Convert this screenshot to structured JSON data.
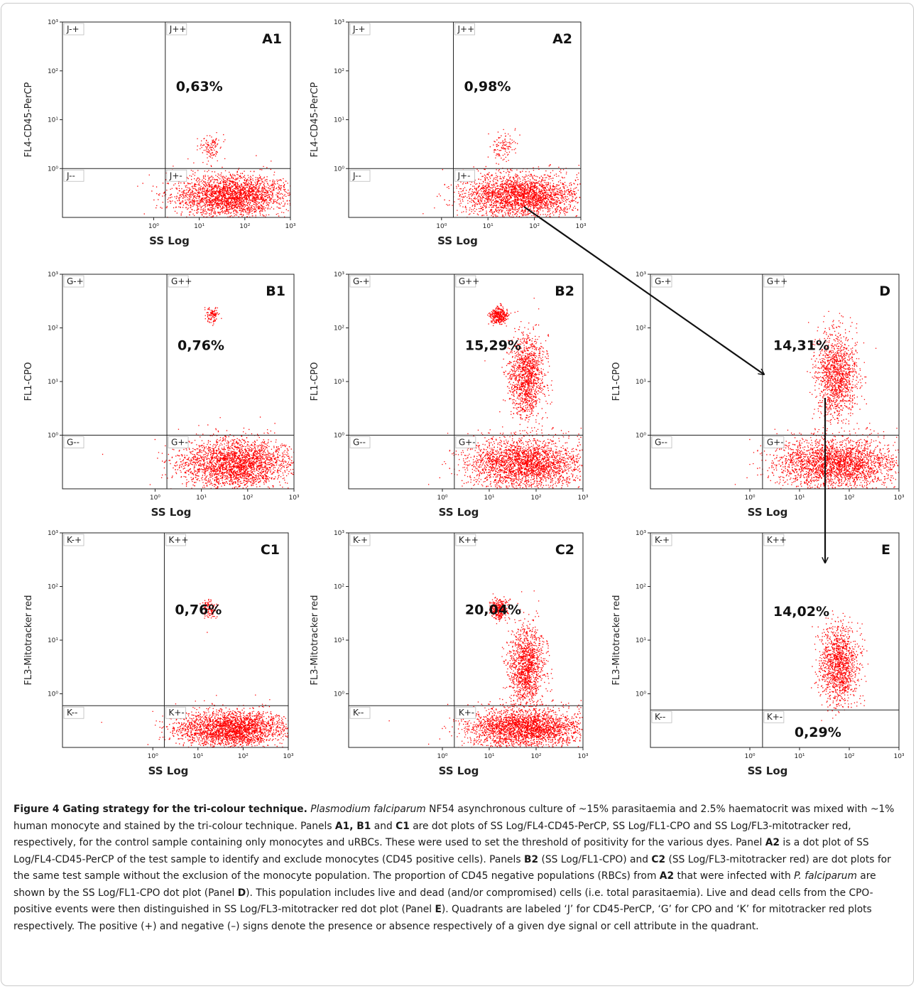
{
  "chart_data": [
    {
      "type": "scatter",
      "panel": "A1",
      "xlabel": "SS Log",
      "ylabel": "FL4-CD45-PerCP",
      "x_ticks": [
        "10⁰",
        "10¹",
        "10²",
        "10³"
      ],
      "y_ticks": [
        "10⁰",
        "10¹",
        "10²",
        "10³"
      ],
      "xlim": [
        0.01,
        1000
      ],
      "ylim": [
        0.1,
        1000
      ],
      "log_scale": true,
      "quadrant_divider": {
        "x": 1.8,
        "y": 1
      },
      "quadrant_labels": [
        "J-+",
        "J++",
        "J--",
        "J+-"
      ],
      "annotations": [
        {
          "text": "0,63%",
          "quadrant": "++"
        }
      ],
      "clusters": [
        {
          "x_range": [
            2.5,
            1000
          ],
          "y_range": [
            0.1,
            0.8
          ],
          "relative_density": "very high"
        },
        {
          "x_range": [
            10,
            30
          ],
          "y_range": [
            1.5,
            5
          ],
          "relative_density": "low"
        }
      ]
    },
    {
      "type": "scatter",
      "panel": "A2",
      "xlabel": "SS Log",
      "ylabel": "FL4-CD45-PerCP",
      "x_ticks": [
        "10⁰",
        "10¹",
        "10²",
        "10³"
      ],
      "y_ticks": [
        "10⁰",
        "10¹",
        "10²",
        "10³"
      ],
      "xlim": [
        0.01,
        1000
      ],
      "ylim": [
        0.1,
        1000
      ],
      "log_scale": true,
      "quadrant_divider": {
        "x": 1.8,
        "y": 1
      },
      "quadrant_labels": [
        "J-+",
        "J++",
        "J--",
        "J+-"
      ],
      "annotations": [
        {
          "text": "0,98%",
          "quadrant": "++"
        }
      ],
      "clusters": [
        {
          "x_range": [
            2.5,
            1000
          ],
          "y_range": [
            0.1,
            0.8
          ],
          "relative_density": "very high"
        },
        {
          "x_range": [
            10,
            40
          ],
          "y_range": [
            1.5,
            6
          ],
          "relative_density": "low"
        }
      ]
    },
    {
      "type": "scatter",
      "panel": "B1",
      "xlabel": "SS Log",
      "ylabel": "FL1-CPO",
      "x_ticks": [
        "10⁰",
        "10¹",
        "10²",
        "10³"
      ],
      "y_ticks": [
        "10⁰",
        "10¹",
        "10²",
        "10³"
      ],
      "xlim": [
        0.01,
        1000
      ],
      "ylim": [
        0.1,
        1000
      ],
      "log_scale": true,
      "quadrant_divider": {
        "x": 1.8,
        "y": 1
      },
      "quadrant_labels": [
        "G-+",
        "G++",
        "G--",
        "G+-"
      ],
      "annotations": [
        {
          "text": "0,76%",
          "quadrant": "++"
        }
      ],
      "clusters": [
        {
          "x_range": [
            3,
            1000
          ],
          "y_range": [
            0.1,
            0.9
          ],
          "relative_density": "very high"
        },
        {
          "x_range": [
            12,
            25
          ],
          "y_range": [
            120,
            250
          ],
          "relative_density": "low"
        }
      ]
    },
    {
      "type": "scatter",
      "panel": "B2",
      "xlabel": "SS Log",
      "ylabel": "FL1-CPO",
      "x_ticks": [
        "10⁰",
        "10¹",
        "10²",
        "10³"
      ],
      "y_ticks": [
        "10⁰",
        "10¹",
        "10²",
        "10³"
      ],
      "xlim": [
        0.01,
        1000
      ],
      "ylim": [
        0.1,
        1000
      ],
      "log_scale": true,
      "quadrant_divider": {
        "x": 1.8,
        "y": 1
      },
      "quadrant_labels": [
        "G-+",
        "G++",
        "G--",
        "G+-"
      ],
      "annotations": [
        {
          "text": "15,29%",
          "quadrant": "++"
        }
      ],
      "clusters": [
        {
          "x_range": [
            3,
            1000
          ],
          "y_range": [
            0.1,
            0.9
          ],
          "relative_density": "very high"
        },
        {
          "x_range": [
            10,
            25
          ],
          "y_range": [
            120,
            250
          ],
          "relative_density": "medium"
        },
        {
          "x_range": [
            25,
            150
          ],
          "y_range": [
            2,
            80
          ],
          "relative_density": "high"
        }
      ]
    },
    {
      "type": "scatter",
      "panel": "D",
      "xlabel": "SS Log",
      "ylabel": "FL1-CPO",
      "x_ticks": [
        "10⁰",
        "10¹",
        "10²",
        "10³"
      ],
      "y_ticks": [
        "10⁰",
        "10¹",
        "10²",
        "10³"
      ],
      "xlim": [
        0.01,
        1000
      ],
      "ylim": [
        0.1,
        1000
      ],
      "log_scale": true,
      "quadrant_divider": {
        "x": 1.8,
        "y": 1
      },
      "quadrant_labels": [
        "G-+",
        "G++",
        "G--",
        "G+-"
      ],
      "annotations": [
        {
          "text": "14,31%",
          "quadrant": "++"
        }
      ],
      "clusters": [
        {
          "x_range": [
            3,
            1000
          ],
          "y_range": [
            0.1,
            0.9
          ],
          "relative_density": "very high"
        },
        {
          "x_range": [
            20,
            150
          ],
          "y_range": [
            2,
            90
          ],
          "relative_density": "high"
        }
      ]
    },
    {
      "type": "scatter",
      "panel": "C1",
      "xlabel": "SS Log",
      "ylabel": "FL3-Mitotracker red",
      "x_ticks": [
        "10⁰",
        "10¹",
        "10²",
        "10³"
      ],
      "y_ticks": [
        "10⁰",
        "10¹",
        "10²",
        "10³"
      ],
      "xlim": [
        0.01,
        1000
      ],
      "ylim": [
        0.1,
        1000
      ],
      "log_scale": true,
      "quadrant_divider": {
        "x": 1.8,
        "y": 0.6
      },
      "quadrant_labels": [
        "K-+",
        "K++",
        "K--",
        "K+-"
      ],
      "annotations": [
        {
          "text": "0,76%",
          "quadrant": "++"
        }
      ],
      "clusters": [
        {
          "x_range": [
            3,
            1000
          ],
          "y_range": [
            0.1,
            0.5
          ],
          "relative_density": "very high"
        },
        {
          "x_range": [
            12,
            25
          ],
          "y_range": [
            25,
            60
          ],
          "relative_density": "low"
        }
      ]
    },
    {
      "type": "scatter",
      "panel": "C2",
      "xlabel": "SS Log",
      "ylabel": "FL3-Mitotracker red",
      "x_ticks": [
        "10⁰",
        "10¹",
        "10²",
        "10³"
      ],
      "y_ticks": [
        "10⁰",
        "10¹",
        "10²",
        "10³"
      ],
      "xlim": [
        0.01,
        1000
      ],
      "ylim": [
        0.1,
        1000
      ],
      "log_scale": true,
      "quadrant_divider": {
        "x": 1.8,
        "y": 0.6
      },
      "quadrant_labels": [
        "K-+",
        "K++",
        "K--",
        "K+-"
      ],
      "annotations": [
        {
          "text": "20,04%",
          "quadrant": "++"
        }
      ],
      "clusters": [
        {
          "x_range": [
            3,
            1000
          ],
          "y_range": [
            0.1,
            0.55
          ],
          "relative_density": "very high"
        },
        {
          "x_range": [
            10,
            25
          ],
          "y_range": [
            25,
            60
          ],
          "relative_density": "medium"
        },
        {
          "x_range": [
            25,
            150
          ],
          "y_range": [
            0.6,
            20
          ],
          "relative_density": "high"
        }
      ]
    },
    {
      "type": "scatter",
      "panel": "E",
      "xlabel": "SS Log",
      "ylabel": "FL3-Mitotracker red",
      "x_ticks": [
        "10⁰",
        "10¹",
        "10²",
        "10³"
      ],
      "y_ticks": [
        "10⁰",
        "10¹",
        "10²",
        "10³"
      ],
      "xlim": [
        0.01,
        1000
      ],
      "ylim": [
        0.1,
        1000
      ],
      "log_scale": true,
      "quadrant_divider": {
        "x": 1.8,
        "y": 0.5
      },
      "quadrant_labels": [
        "K-+",
        "K++",
        "K--",
        "K+-"
      ],
      "annotations": [
        {
          "text": "14,02%",
          "quadrant": "++"
        },
        {
          "text": "0,29%",
          "quadrant": "+-"
        }
      ],
      "clusters": [
        {
          "x_range": [
            25,
            150
          ],
          "y_range": [
            0.6,
            20
          ],
          "relative_density": "high"
        }
      ]
    }
  ],
  "figure": {
    "dot_color": "#ff0000",
    "arrows": [
      {
        "from": "A2",
        "to": "D"
      },
      {
        "from": "D",
        "to": "E"
      }
    ]
  },
  "caption": {
    "title": "Figure 4 Gating strategy for the tri-colour technique.",
    "segments": [
      {
        "t": " ",
        "s": ""
      },
      {
        "t": "Plasmodium falciparum",
        "s": "i"
      },
      {
        "t": " NF54 asynchronous culture of ~15% parasitaemia and 2.5% haematocrit was mixed with ~1% human monocyte and stained by the tri-colour technique. Panels ",
        "s": ""
      },
      {
        "t": "A1, B1",
        "s": "b"
      },
      {
        "t": " and ",
        "s": ""
      },
      {
        "t": "C1",
        "s": "b"
      },
      {
        "t": " are dot plots of SS Log/FL4-CD45-PerCP, SS Log/FL1-CPO and SS Log/FL3-mitotracker red, respectively, for the control sample containing only monocytes and uRBCs. These were used to set the threshold of positivity for the various dyes. Panel ",
        "s": ""
      },
      {
        "t": "A2",
        "s": "b"
      },
      {
        "t": " is a dot plot of SS Log/FL4-CD45-PerCP of the test sample to identify and exclude monocytes (CD45 positive cells). Panels ",
        "s": ""
      },
      {
        "t": "B2",
        "s": "b"
      },
      {
        "t": " (SS Log/FL1-CPO) and ",
        "s": ""
      },
      {
        "t": "C2",
        "s": "b"
      },
      {
        "t": " (SS Log/FL3-mitotracker red) are dot plots for the same test sample without the exclusion of the monocyte population. The proportion of CD45 negative populations (RBCs) from ",
        "s": ""
      },
      {
        "t": "A2",
        "s": "b"
      },
      {
        "t": " that were infected with ",
        "s": ""
      },
      {
        "t": "P. falciparum",
        "s": "i"
      },
      {
        "t": " are shown by the SS Log/FL1-CPO dot plot (Panel ",
        "s": ""
      },
      {
        "t": "D",
        "s": "b"
      },
      {
        "t": "). This population includes live and dead (and/or compromised) cells (i.e. total parasitaemia). Live and dead cells from the CPO-positive events were then distinguished in SS Log/FL3-mitotracker red dot plot (Panel ",
        "s": ""
      },
      {
        "t": "E",
        "s": "b"
      },
      {
        "t": "). Quadrants are labeled ‘J’ for CD45-PerCP, ‘G’ for CPO and ‘K’ for mitotracker red plots respectively. The positive (+) and negative (–) signs denote the presence or absence respectively of a given dye signal or cell attribute in the quadrant.",
        "s": ""
      }
    ]
  }
}
